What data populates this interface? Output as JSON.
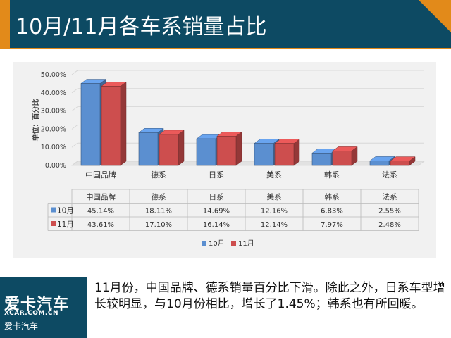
{
  "header": {
    "title": "10月/11月各车系销量占比"
  },
  "chart_data": {
    "type": "bar",
    "categories": [
      "中国品牌",
      "德系",
      "日系",
      "美系",
      "韩系",
      "法系"
    ],
    "series": [
      {
        "name": "10月",
        "values": [
          45.14,
          18.11,
          14.69,
          12.16,
          6.83,
          2.55
        ],
        "labels": [
          "45.14%",
          "18.11%",
          "14.69%",
          "12.16%",
          "6.83%",
          "2.55%"
        ]
      },
      {
        "name": "11月",
        "values": [
          43.61,
          17.1,
          16.14,
          12.14,
          7.97,
          2.48
        ],
        "labels": [
          "43.61%",
          "17.10%",
          "16.14%",
          "12.14%",
          "7.97%",
          "2.48%"
        ]
      }
    ],
    "ylabel": "单位：百分比",
    "y_ticks": [
      "0.00%",
      "10.00%",
      "20.00%",
      "30.00%",
      "40.00%",
      "50.00%"
    ],
    "ylim": [
      0,
      50
    ],
    "grid": true,
    "legend": "bottom",
    "colors": {
      "10月": "#5b8fd0",
      "11月": "#cd4e4e"
    }
  },
  "footer": {
    "logo_main": "爱卡汽车",
    "logo_sub": "XCAR.COM.CN",
    "logo_cn": "爱卡汽车",
    "caption": "11月份，中国品牌、德系销量百分比下滑。除此之外，日系车型增长较明显，与10月份相比，增长了1.45%；韩系也有所回暖。"
  }
}
